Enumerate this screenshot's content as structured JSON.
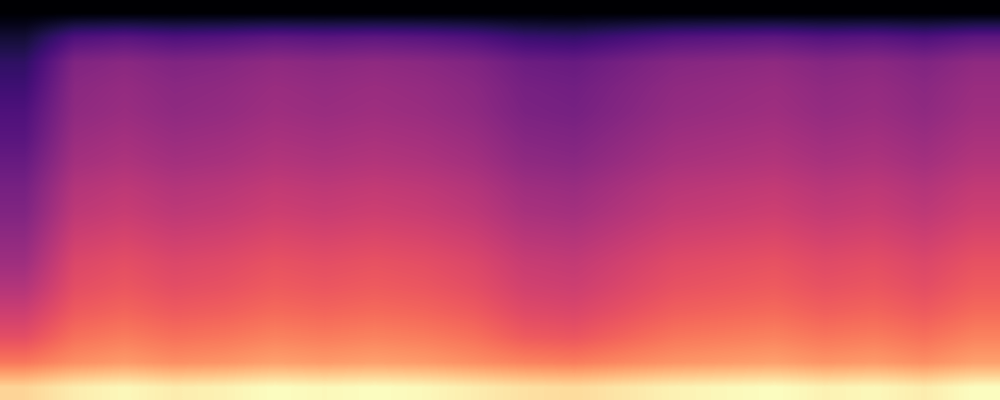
{
  "chart_data": {
    "type": "heatmap",
    "tick_labels": false,
    "cells": [
      [
        0.0,
        0.0,
        0.0,
        0.0,
        0.0,
        0.0,
        0.0,
        0.0,
        0.0,
        0.0,
        0.0,
        0.0,
        0.0,
        0.0,
        0.0,
        0.0,
        0.0,
        0.0,
        0.0,
        0.0
      ],
      [
        0.08,
        0.2,
        0.22,
        0.2,
        0.21,
        0.23,
        0.22,
        0.23,
        0.22,
        0.2,
        0.16,
        0.15,
        0.18,
        0.21,
        0.22,
        0.23,
        0.21,
        0.22,
        0.2,
        0.23
      ],
      [
        0.14,
        0.3,
        0.32,
        0.3,
        0.31,
        0.33,
        0.32,
        0.33,
        0.32,
        0.3,
        0.26,
        0.25,
        0.28,
        0.31,
        0.32,
        0.33,
        0.31,
        0.32,
        0.3,
        0.33
      ],
      [
        0.17,
        0.32,
        0.34,
        0.32,
        0.33,
        0.35,
        0.34,
        0.35,
        0.34,
        0.32,
        0.28,
        0.27,
        0.3,
        0.33,
        0.34,
        0.35,
        0.33,
        0.34,
        0.32,
        0.35
      ],
      [
        0.2,
        0.33,
        0.35,
        0.33,
        0.34,
        0.36,
        0.35,
        0.36,
        0.35,
        0.33,
        0.29,
        0.28,
        0.31,
        0.34,
        0.35,
        0.36,
        0.34,
        0.35,
        0.33,
        0.36
      ],
      [
        0.22,
        0.35,
        0.37,
        0.35,
        0.36,
        0.38,
        0.37,
        0.38,
        0.37,
        0.35,
        0.31,
        0.3,
        0.33,
        0.36,
        0.37,
        0.38,
        0.36,
        0.37,
        0.35,
        0.38
      ],
      [
        0.25,
        0.37,
        0.39,
        0.37,
        0.38,
        0.4,
        0.39,
        0.4,
        0.39,
        0.37,
        0.33,
        0.32,
        0.35,
        0.38,
        0.39,
        0.4,
        0.38,
        0.39,
        0.37,
        0.4
      ],
      [
        0.28,
        0.4,
        0.42,
        0.4,
        0.41,
        0.43,
        0.42,
        0.43,
        0.42,
        0.4,
        0.36,
        0.35,
        0.38,
        0.41,
        0.42,
        0.43,
        0.41,
        0.42,
        0.4,
        0.43
      ],
      [
        0.3,
        0.42,
        0.44,
        0.42,
        0.43,
        0.45,
        0.44,
        0.45,
        0.44,
        0.42,
        0.38,
        0.37,
        0.4,
        0.43,
        0.44,
        0.45,
        0.43,
        0.44,
        0.42,
        0.45
      ],
      [
        0.33,
        0.45,
        0.47,
        0.45,
        0.46,
        0.48,
        0.47,
        0.48,
        0.47,
        0.45,
        0.41,
        0.4,
        0.43,
        0.46,
        0.47,
        0.48,
        0.46,
        0.47,
        0.45,
        0.48
      ],
      [
        0.36,
        0.48,
        0.5,
        0.48,
        0.49,
        0.51,
        0.5,
        0.51,
        0.5,
        0.48,
        0.44,
        0.43,
        0.46,
        0.49,
        0.5,
        0.51,
        0.49,
        0.5,
        0.48,
        0.51
      ],
      [
        0.4,
        0.5,
        0.52,
        0.5,
        0.51,
        0.53,
        0.52,
        0.53,
        0.52,
        0.5,
        0.46,
        0.45,
        0.48,
        0.51,
        0.52,
        0.53,
        0.51,
        0.52,
        0.5,
        0.53
      ],
      [
        0.45,
        0.53,
        0.55,
        0.53,
        0.54,
        0.56,
        0.55,
        0.56,
        0.55,
        0.53,
        0.49,
        0.48,
        0.51,
        0.54,
        0.55,
        0.56,
        0.54,
        0.55,
        0.53,
        0.56
      ],
      [
        0.5,
        0.57,
        0.59,
        0.57,
        0.58,
        0.6,
        0.59,
        0.6,
        0.59,
        0.57,
        0.53,
        0.52,
        0.55,
        0.58,
        0.59,
        0.6,
        0.58,
        0.59,
        0.57,
        0.6
      ],
      [
        0.58,
        0.62,
        0.64,
        0.62,
        0.63,
        0.65,
        0.64,
        0.65,
        0.64,
        0.62,
        0.6,
        0.59,
        0.61,
        0.63,
        0.64,
        0.65,
        0.63,
        0.64,
        0.62,
        0.65
      ],
      [
        0.74,
        0.78,
        0.8,
        0.78,
        0.79,
        0.81,
        0.8,
        0.81,
        0.8,
        0.78,
        0.76,
        0.75,
        0.77,
        0.79,
        0.8,
        0.81,
        0.79,
        0.8,
        0.78,
        0.81
      ]
    ]
  }
}
